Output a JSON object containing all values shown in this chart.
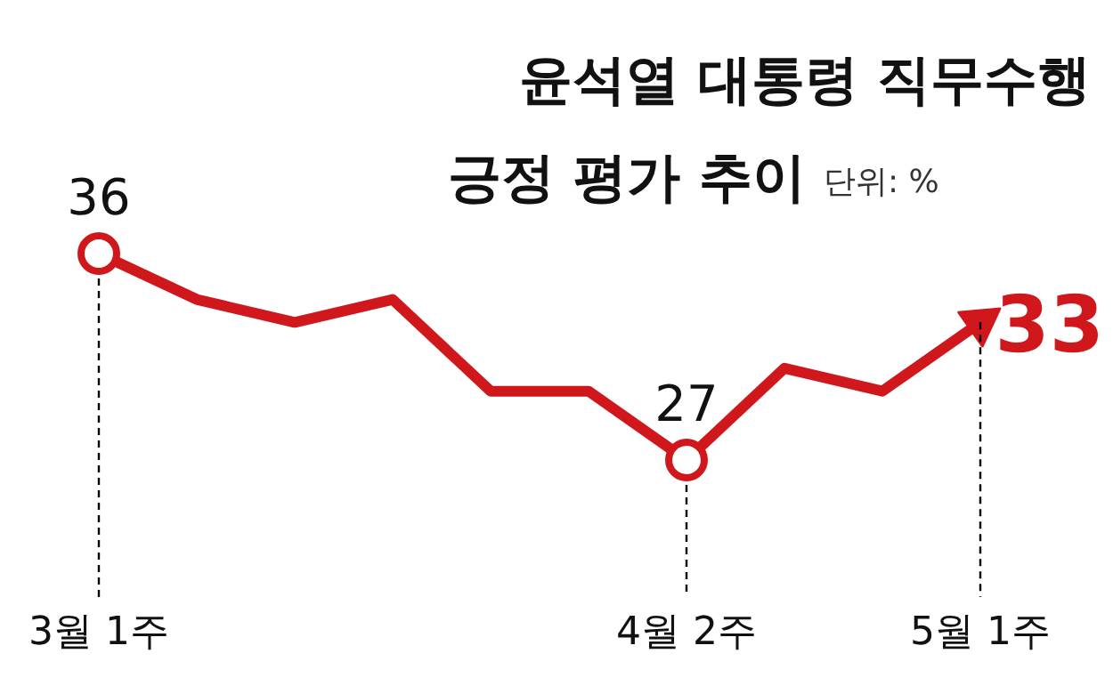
{
  "chart_data": {
    "type": "line",
    "title": "윤석열 대통령 직무수행\n긍정 평가 추이",
    "annotations": [
      "단위: %"
    ],
    "categories": [
      "3월 1주",
      null,
      null,
      null,
      null,
      null,
      "4월 2주",
      null,
      null,
      "5월 1주"
    ],
    "series": [
      {
        "color": "#d0171c",
        "values": [
          36,
          34,
          33,
          34,
          30,
          30,
          27,
          31,
          30,
          33
        ],
        "value_labels": [
          "36",
          null,
          null,
          null,
          null,
          null,
          "27",
          null,
          null,
          "33"
        ]
      }
    ],
    "line_style": "solid"
  }
}
